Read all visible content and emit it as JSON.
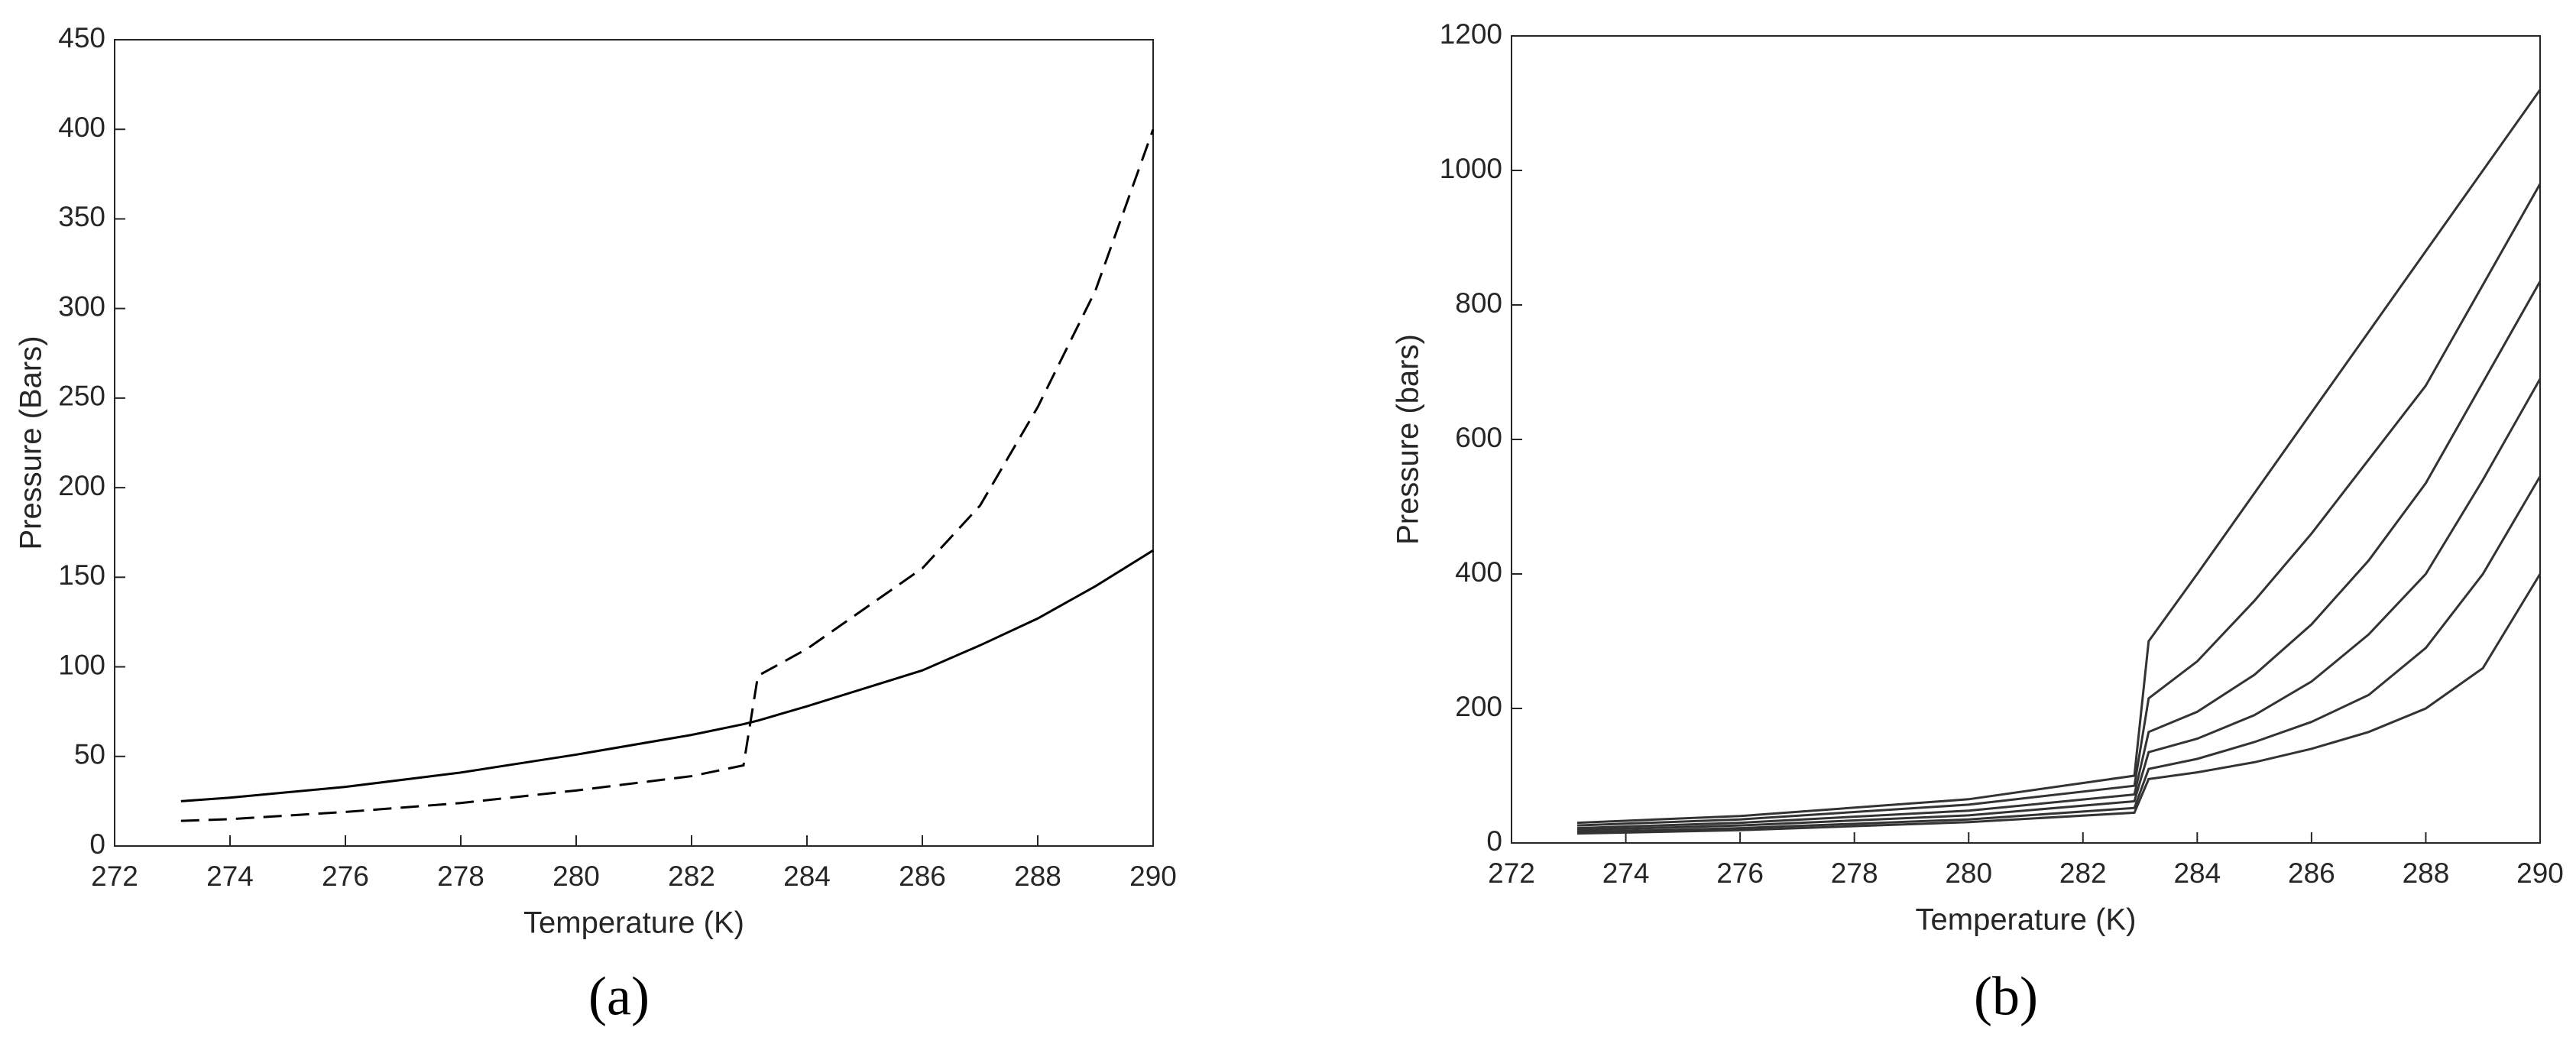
{
  "chart_data": [
    {
      "type": "line",
      "caption": "(a)",
      "x_label": "Temperature (K)",
      "y_label": "Pressure (Bars)",
      "xlim": [
        272,
        290
      ],
      "xticks": [
        272,
        274,
        276,
        278,
        280,
        282,
        284,
        286,
        288,
        290
      ],
      "ylim": [
        0,
        450
      ],
      "yticks": [
        0,
        50,
        100,
        150,
        200,
        250,
        300,
        350,
        400,
        450
      ],
      "grid": false,
      "box": true,
      "x": [
        273.15,
        274,
        276,
        278,
        280,
        282,
        282.9,
        283.15,
        284,
        286,
        287,
        288,
        289,
        290
      ],
      "series": [
        {
          "color": "#000000",
          "style": "solid",
          "values": [
            25,
            27,
            33,
            41,
            51,
            62,
            68,
            70,
            78,
            98,
            112,
            127,
            145,
            165
          ]
        },
        {
          "color": "#000000",
          "style": "dashed",
          "values": [
            14,
            15,
            19,
            24,
            31,
            39,
            45,
            95,
            110,
            155,
            190,
            245,
            310,
            400
          ]
        }
      ]
    },
    {
      "type": "line",
      "caption": "(b)",
      "x_label": "Temperature (K)",
      "y_label": "Pressure (bars)",
      "xlim": [
        272,
        290
      ],
      "xticks": [
        272,
        274,
        276,
        278,
        280,
        282,
        284,
        286,
        288,
        290
      ],
      "ylim": [
        0,
        1200
      ],
      "yticks": [
        0,
        200,
        400,
        600,
        800,
        1000,
        1200
      ],
      "grid": false,
      "box": true,
      "x": [
        273.15,
        276,
        280,
        282.9,
        283.15,
        284,
        285,
        286,
        287,
        288,
        289,
        290
      ],
      "series": [
        {
          "color": "#333333",
          "style": "solid",
          "values": [
            30,
            40,
            65,
            100,
            300,
            400,
            520,
            640,
            760,
            880,
            1000,
            1120
          ]
        },
        {
          "color": "#333333",
          "style": "solid",
          "values": [
            26,
            35,
            57,
            85,
            215,
            270,
            360,
            460,
            570,
            680,
            830,
            980
          ]
        },
        {
          "color": "#333333",
          "style": "solid",
          "values": [
            22,
            30,
            48,
            72,
            165,
            195,
            250,
            325,
            420,
            535,
            685,
            835
          ]
        },
        {
          "color": "#333333",
          "style": "solid",
          "values": [
            19,
            26,
            41,
            62,
            135,
            155,
            190,
            240,
            310,
            400,
            540,
            690
          ]
        },
        {
          "color": "#333333",
          "style": "solid",
          "values": [
            16,
            22,
            35,
            52,
            110,
            125,
            150,
            180,
            220,
            290,
            400,
            545
          ]
        },
        {
          "color": "#333333",
          "style": "solid",
          "values": [
            14,
            19,
            31,
            45,
            95,
            105,
            120,
            140,
            165,
            200,
            260,
            400
          ]
        }
      ]
    }
  ]
}
